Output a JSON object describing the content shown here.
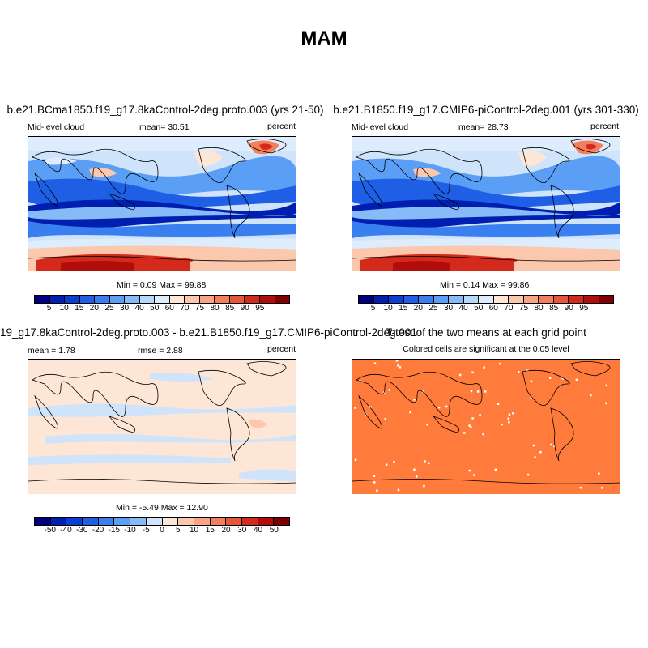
{
  "figure_title": "MAM",
  "colors": {
    "base": [
      "#00007f",
      "#001fb0",
      "#0a3fd4",
      "#1f5fe6",
      "#3a7ff0",
      "#5a9ef5",
      "#86bbf8",
      "#b6d8fb",
      "#deedfd",
      "#fde6d6",
      "#fcc8ad",
      "#f9a584",
      "#f47f5c",
      "#e8563a",
      "#d42a1c",
      "#b00d0b",
      "#7f0000"
    ],
    "diff": [
      "#00007f",
      "#001fb0",
      "#0a3fd4",
      "#1f5fe6",
      "#3a7ff0",
      "#5a9ef5",
      "#86bbf8",
      "#cfe4fb",
      "#fde6d6",
      "#fcc8ad",
      "#f9a584",
      "#f47f5c",
      "#e8563a",
      "#d42a1c",
      "#b00d0b",
      "#7f0000"
    ],
    "ttest_fill": "#ff7b3c"
  },
  "panels": {
    "p1": {
      "title": "b.e21.BCma1850.f19_g17.8kaControl-2deg.proto.003 (yrs 21-50)",
      "left_label": "Mid-level cloud",
      "center_label": "mean=  30.51",
      "right_label": "percent",
      "minmax": "Min =   0.09 Max =  99.88"
    },
    "p2": {
      "title": "b.e21.B1850.f19_g17.CMIP6-piControl-2deg.001 (yrs 301-330)",
      "left_label": "Mid-level cloud",
      "center_label": "mean=  28.73",
      "right_label": "percent",
      "minmax": "Min =   0.14 Max =  99.86"
    },
    "p3": {
      "title": "19_g17.8kaControl-2deg.proto.003 - b.e21.B1850.f19_g17.CMIP6-piControl-2deg.001",
      "left_label": "mean =   1.78",
      "center_label": "rmse =   2.88",
      "right_label": "percent",
      "minmax": "Min =  -5.49 Max =  12.90"
    },
    "p4": {
      "title": "T-test of the two means at each grid point",
      "subtitle": "Colored cells are significant at the 0.05 level"
    }
  },
  "colorbar_base_ticks": [
    "5",
    "10",
    "15",
    "20",
    "25",
    "30",
    "40",
    "50",
    "60",
    "70",
    "75",
    "80",
    "85",
    "90",
    "95"
  ],
  "colorbar_diff_ticks": [
    "-50",
    "-40",
    "-30",
    "-20",
    "-15",
    "-10",
    "-5",
    "0",
    "5",
    "10",
    "15",
    "20",
    "30",
    "40",
    "50"
  ]
}
